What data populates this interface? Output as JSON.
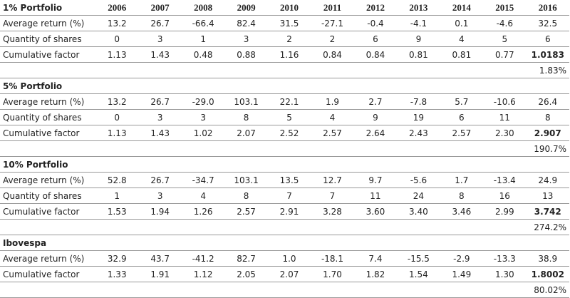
{
  "years": [
    "2006",
    "2007",
    "2008",
    "2009",
    "2010",
    "2011",
    "2012",
    "2013",
    "2014",
    "2015",
    "2016"
  ],
  "sections": [
    {
      "title": "1% Portfolio",
      "rows": [
        {
          "label": "Average return (%)",
          "values": [
            "13.2",
            "26.7",
            "-66.4",
            "82.4",
            "31.5",
            "-27.1",
            "-0.4",
            "-4.1",
            "0.1",
            "-4.6",
            "32.5"
          ]
        },
        {
          "label": "Quantity of shares",
          "values": [
            "0",
            "3",
            "1",
            "3",
            "2",
            "2",
            "6",
            "9",
            "4",
            "5",
            "6"
          ]
        },
        {
          "label": "Cumulative factor",
          "values": [
            "1.13",
            "1.43",
            "0.48",
            "0.88",
            "1.16",
            "0.84",
            "0.84",
            "0.81",
            "0.81",
            "0.77",
            "1.0183"
          ]
        }
      ],
      "total": "1.83%"
    },
    {
      "title": "5% Portfolio",
      "rows": [
        {
          "label": "Average return (%)",
          "values": [
            "13.2",
            "26.7",
            "-29.0",
            "103.1",
            "22.1",
            "1.9",
            "2.7",
            "-7.8",
            "5.7",
            "-10.6",
            "26.4"
          ]
        },
        {
          "label": "Quantity of shares",
          "values": [
            "0",
            "3",
            "3",
            "8",
            "5",
            "4",
            "9",
            "19",
            "6",
            "11",
            "8"
          ]
        },
        {
          "label": "Cumulative factor",
          "values": [
            "1.13",
            "1.43",
            "1.02",
            "2.07",
            "2.52",
            "2.57",
            "2.64",
            "2.43",
            "2.57",
            "2.30",
            "2.907"
          ]
        }
      ],
      "total": "190.7%"
    },
    {
      "title": "10% Portfolio",
      "rows": [
        {
          "label": "Average return (%)",
          "values": [
            "52.8",
            "26.7",
            "-34.7",
            "103.1",
            "13.5",
            "12.7",
            "9.7",
            "-5.6",
            "1.7",
            "-13.4",
            "24.9"
          ]
        },
        {
          "label": "Quantity of shares",
          "values": [
            "1",
            "3",
            "4",
            "8",
            "7",
            "7",
            "11",
            "24",
            "8",
            "16",
            "13"
          ]
        },
        {
          "label": "Cumulative factor",
          "values": [
            "1.53",
            "1.94",
            "1.26",
            "2.57",
            "2.91",
            "3.28",
            "3.60",
            "3.40",
            "3.46",
            "2.99",
            "3.742"
          ]
        }
      ],
      "total": "274.2%"
    },
    {
      "title": "Ibovespa",
      "rows": [
        {
          "label": "Average return (%)",
          "values": [
            "32.9",
            "43.7",
            "-41.2",
            "82.7",
            "1.0",
            "-18.1",
            "7.4",
            "-15.5",
            "-2.9",
            "-13.3",
            "38.9"
          ]
        },
        {
          "label": "Cumulative factor",
          "values": [
            "1.33",
            "1.91",
            "1.12",
            "2.05",
            "2.07",
            "1.70",
            "1.82",
            "1.54",
            "1.49",
            "1.30",
            "1.8002"
          ]
        }
      ],
      "total": "80.02%"
    }
  ]
}
